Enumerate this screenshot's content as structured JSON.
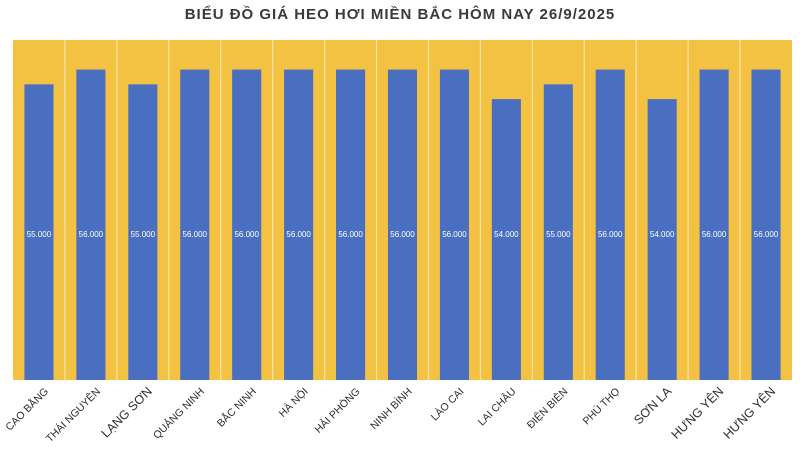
{
  "chart_data": {
    "type": "bar",
    "title": "BIỂU ĐỒ GIÁ HEO HƠI MIỀN BẮC HÔM NAY 26/9/2025",
    "categories": [
      "CAO BẰNG",
      "THÁI NGUYÊN",
      "LẠNG SƠN",
      "QUẢNG NINH",
      "BẮC NINH",
      "HÀ NỘI",
      "HẢI PHÒNG",
      "NINH BÌNH",
      "LÀO CAI",
      "LAI CHÂU",
      "ĐIỆN BIÊN",
      "PHÚ THỌ",
      "SƠN LA",
      "HƯNG YÊN",
      "HƯNG YÊN"
    ],
    "values": [
      55000,
      56000,
      55000,
      56000,
      56000,
      56000,
      56000,
      56000,
      56000,
      54000,
      55000,
      56000,
      54000,
      56000,
      56000
    ],
    "data_labels": [
      "55.000",
      "56.000",
      "55.000",
      "56.000",
      "56.000",
      "56.000",
      "56.000",
      "56.000",
      "56.000",
      "54.000",
      "55.000",
      "56.000",
      "54.000",
      "56.000",
      "56.000"
    ],
    "ylim": [
      35000,
      58000
    ],
    "grid": false,
    "legend": "none",
    "colors": {
      "plot_background": "#F4C242",
      "bar": "#4A6FC0",
      "separator": "#FBE3A6",
      "data_label": "#FFFFFF"
    }
  }
}
